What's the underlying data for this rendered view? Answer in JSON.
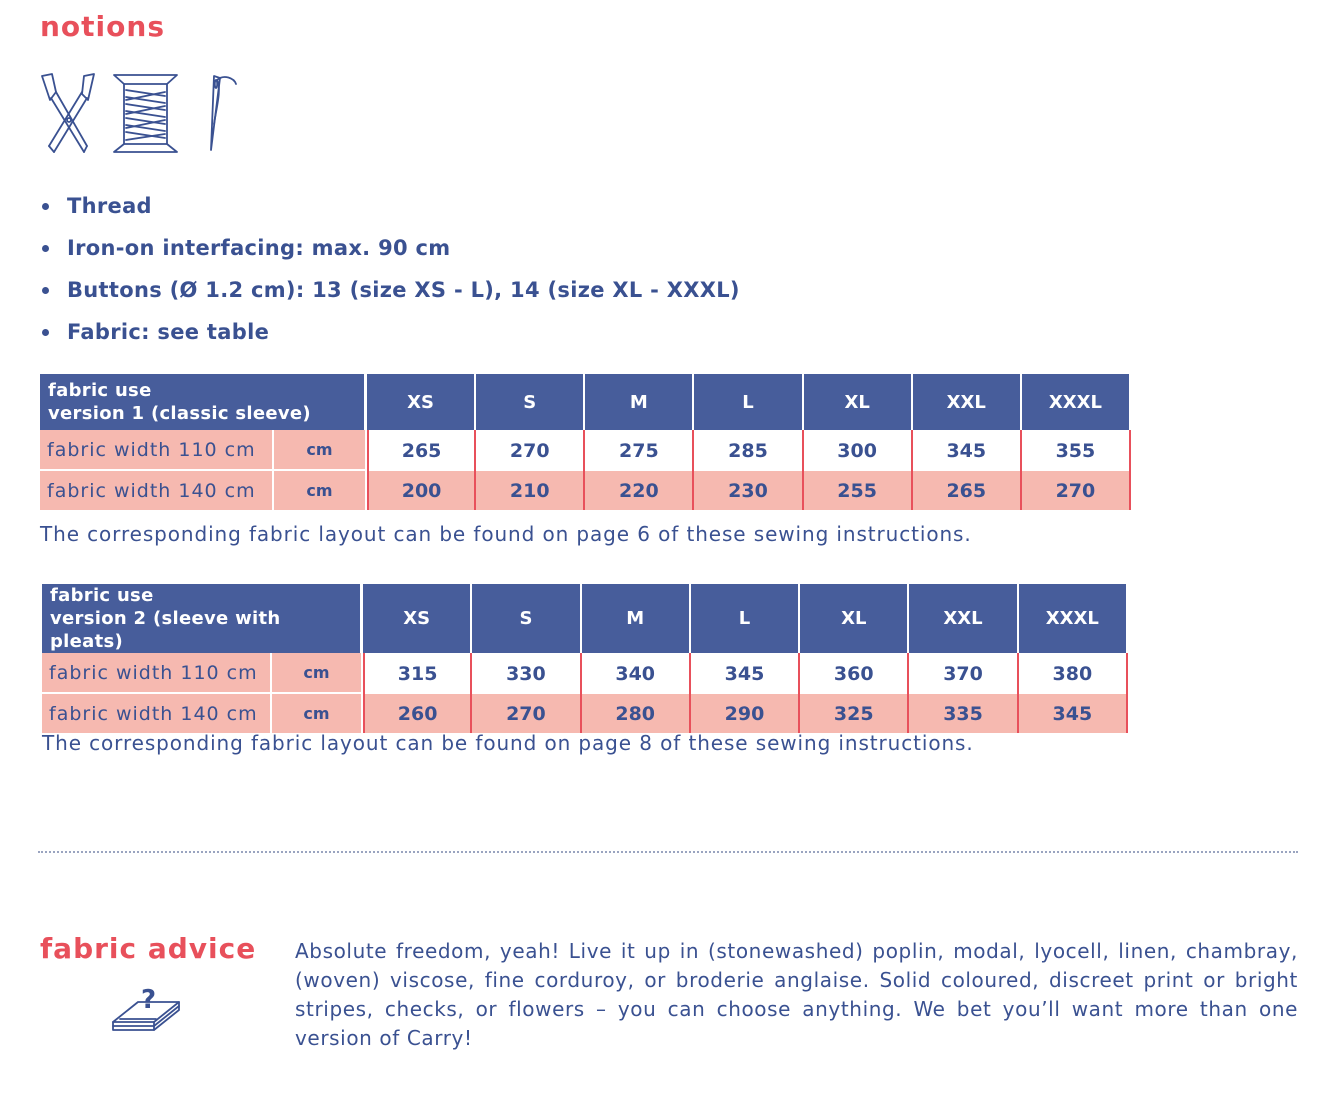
{
  "notions": {
    "title": "notions",
    "icons": [
      "scissors-icon",
      "thread-spool-icon",
      "needle-icon"
    ],
    "items": [
      "Thread",
      "Iron-on interfacing: max. 90 cm",
      "Buttons (Ø 1.2 cm): 13 (size XS - L), 14 (size XL - XXXL)",
      "Fabric: see table"
    ]
  },
  "table1": {
    "header_line1": "fabric use",
    "header_line2": "version 1 (classic sleeve)",
    "sizes": [
      "XS",
      "S",
      "M",
      "L",
      "XL",
      "XXL",
      "XXXL"
    ],
    "rows": [
      {
        "label": "fabric width 110 cm",
        "unit": "cm",
        "values": [
          "265",
          "270",
          "275",
          "285",
          "300",
          "345",
          "355"
        ]
      },
      {
        "label": "fabric width 140 cm",
        "unit": "cm",
        "values": [
          "200",
          "210",
          "220",
          "230",
          "255",
          "265",
          "270"
        ]
      }
    ],
    "note": "The corresponding fabric layout can be found on page 6 of these sewing instructions."
  },
  "table2": {
    "header_line1": "fabric use",
    "header_line2": "version 2 (sleeve with pleats)",
    "sizes": [
      "XS",
      "S",
      "M",
      "L",
      "XL",
      "XXL",
      "XXXL"
    ],
    "rows": [
      {
        "label": "fabric width 110 cm",
        "unit": "cm",
        "values": [
          "315",
          "330",
          "340",
          "345",
          "360",
          "370",
          "380"
        ]
      },
      {
        "label": "fabric width 140 cm",
        "unit": "cm",
        "values": [
          "260",
          "270",
          "280",
          "290",
          "325",
          "335",
          "345"
        ]
      }
    ],
    "note": "The corresponding fabric layout can be found on page 8 of these sewing instructions."
  },
  "fabric_advice": {
    "title": "fabric advice",
    "icon": "fabric-stack-question-icon",
    "text": "Absolute freedom, yeah! Live it up in (stonewashed) poplin, modal, lyocell, linen, chambray, (woven) viscose, fine corduroy, or broderie anglaise. Solid coloured, discreet print or bright stripes, checks, or flowers – you can choose anything. We bet you’ll want more than one version of Carry!"
  },
  "colors": {
    "heading_red": "#e8505b",
    "text_blue": "#3a5191",
    "header_blue": "#475d9b",
    "row_pink": "#f6b9b0"
  }
}
